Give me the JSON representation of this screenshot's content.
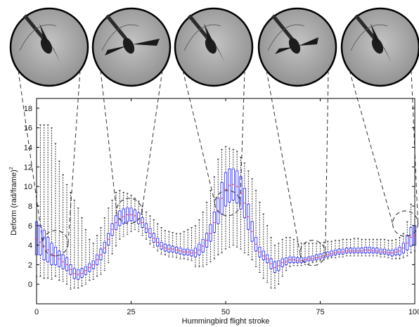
{
  "chart_data": {
    "type": "box",
    "title": "",
    "xlabel": "Hummingbird flight stroke",
    "ylabel": "Deform (rad/frame)",
    "ylabel_superscript": "2",
    "xlim": [
      0,
      100
    ],
    "ylim": [
      -2,
      19
    ],
    "xticks": [
      0,
      25,
      50,
      75,
      100
    ],
    "yticks": [
      0,
      2,
      4,
      6,
      8,
      10,
      12,
      14,
      16,
      18
    ],
    "grid": false,
    "box_color": "#3333ff",
    "median_color": "#ff3333",
    "whisker_color": "#222222",
    "boxes": {
      "x": [
        0,
        1,
        2,
        3,
        4,
        5,
        6,
        7,
        8,
        9,
        10,
        11,
        12,
        13,
        14,
        15,
        16,
        17,
        18,
        19,
        20,
        21,
        22,
        23,
        24,
        25,
        26,
        27,
        28,
        29,
        30,
        31,
        32,
        33,
        34,
        35,
        36,
        37,
        38,
        39,
        40,
        41,
        42,
        43,
        44,
        45,
        46,
        47,
        48,
        49,
        50,
        51,
        52,
        53,
        54,
        55,
        56,
        57,
        58,
        59,
        60,
        61,
        62,
        63,
        64,
        65,
        66,
        67,
        68,
        69,
        70,
        71,
        72,
        73,
        74,
        75,
        76,
        77,
        78,
        79,
        80,
        81,
        82,
        83,
        84,
        85,
        86,
        87,
        88,
        89,
        90,
        91,
        92,
        93,
        94,
        95,
        96,
        97,
        98,
        99,
        100
      ],
      "q1": [
        3.0,
        3.0,
        2.5,
        2.3,
        2.0,
        2.0,
        1.8,
        1.6,
        1.4,
        1.0,
        0.6,
        0.5,
        0.7,
        1.0,
        1.3,
        1.6,
        2.0,
        2.5,
        3.2,
        4.0,
        5.0,
        5.6,
        6.0,
        6.2,
        6.4,
        6.5,
        6.4,
        6.2,
        5.8,
        5.3,
        4.8,
        4.3,
        3.9,
        3.6,
        3.4,
        3.3,
        3.3,
        3.2,
        3.1,
        3.0,
        3.0,
        2.9,
        2.8,
        3.0,
        3.3,
        3.8,
        4.4,
        5.3,
        6.2,
        7.2,
        8.0,
        8.4,
        8.6,
        8.3,
        7.7,
        6.8,
        5.6,
        4.4,
        3.4,
        2.8,
        2.5,
        2.2,
        1.6,
        1.2,
        1.4,
        1.8,
        2.0,
        2.2,
        2.2,
        2.2,
        2.2,
        2.3,
        2.4,
        2.4,
        2.5,
        2.6,
        2.7,
        2.8,
        2.9,
        3.0,
        3.1,
        3.1,
        3.2,
        3.2,
        3.2,
        3.2,
        3.2,
        3.2,
        3.2,
        3.2,
        3.2,
        3.1,
        3.1,
        3.0,
        2.9,
        3.0,
        3.0,
        3.2,
        3.5,
        3.9,
        4.0
      ],
      "q3": [
        6.4,
        6.0,
        5.5,
        4.8,
        4.2,
        3.8,
        3.4,
        3.0,
        2.7,
        2.0,
        1.6,
        1.5,
        1.6,
        1.8,
        2.1,
        2.4,
        3.0,
        3.6,
        4.3,
        5.2,
        6.2,
        7.0,
        7.5,
        7.7,
        7.8,
        7.8,
        7.6,
        7.3,
        6.8,
        6.2,
        5.7,
        5.2,
        4.7,
        4.3,
        4.1,
        4.0,
        3.9,
        3.8,
        3.7,
        3.6,
        3.6,
        3.5,
        3.7,
        4.1,
        4.6,
        5.2,
        6.1,
        7.4,
        8.8,
        10.4,
        11.4,
        11.8,
        11.8,
        11.6,
        11.0,
        9.8,
        8.2,
        6.4,
        4.8,
        3.8,
        3.4,
        3.0,
        2.6,
        2.3,
        2.4,
        2.6,
        2.7,
        2.8,
        2.8,
        2.7,
        2.7,
        2.7,
        2.8,
        2.9,
        3.0,
        3.1,
        3.2,
        3.3,
        3.4,
        3.5,
        3.6,
        3.6,
        3.7,
        3.7,
        3.7,
        3.7,
        3.7,
        3.8,
        3.8,
        3.7,
        3.7,
        3.6,
        3.6,
        3.5,
        3.5,
        3.6,
        3.8,
        4.2,
        5.0,
        5.8,
        6.0
      ],
      "median": [
        4.6,
        4.3,
        3.9,
        3.5,
        3.1,
        2.9,
        2.6,
        2.3,
        2.0,
        1.5,
        1.1,
        1.0,
        1.1,
        1.4,
        1.7,
        2.0,
        2.5,
        3.0,
        3.7,
        4.6,
        5.6,
        6.3,
        6.7,
        6.9,
        7.1,
        7.1,
        7.0,
        6.7,
        6.3,
        5.7,
        5.2,
        4.7,
        4.3,
        3.9,
        3.7,
        3.6,
        3.6,
        3.5,
        3.4,
        3.3,
        3.3,
        3.2,
        3.2,
        3.5,
        3.9,
        4.5,
        5.2,
        6.3,
        7.5,
        8.8,
        9.7,
        10.1,
        10.2,
        10.0,
        9.3,
        8.3,
        6.9,
        5.4,
        4.1,
        3.3,
        2.9,
        2.6,
        2.1,
        1.7,
        1.9,
        2.2,
        2.3,
        2.5,
        2.5,
        2.4,
        2.4,
        2.5,
        2.6,
        2.6,
        2.7,
        2.8,
        2.9,
        3.0,
        3.1,
        3.2,
        3.3,
        3.3,
        3.4,
        3.4,
        3.4,
        3.4,
        3.4,
        3.5,
        3.5,
        3.4,
        3.4,
        3.3,
        3.3,
        3.2,
        3.2,
        3.3,
        3.4,
        3.7,
        4.2,
        4.8,
        5.0
      ],
      "low": [
        0.8,
        0.8,
        0.6,
        0.6,
        0.5,
        0.8,
        0.4,
        0.3,
        0.0,
        -0.5,
        -0.4,
        -0.4,
        -0.2,
        0.0,
        0.4,
        0.5,
        0.8,
        1.0,
        1.4,
        2.2,
        3.1,
        3.9,
        4.6,
        4.9,
        5.1,
        5.4,
        5.6,
        5.4,
        5.0,
        4.6,
        4.1,
        3.8,
        3.4,
        3.1,
        3.0,
        2.8,
        2.8,
        2.7,
        2.6,
        2.6,
        2.5,
        2.4,
        1.8,
        1.8,
        1.8,
        2.0,
        2.3,
        2.6,
        3.0,
        3.2,
        3.6,
        3.8,
        4.0,
        3.8,
        3.6,
        3.2,
        3.0,
        2.5,
        1.8,
        1.2,
        0.6,
        0.2,
        -0.4,
        -0.4,
        0.0,
        0.8,
        1.4,
        1.8,
        1.9,
        1.9,
        1.9,
        2.0,
        2.1,
        2.2,
        2.3,
        2.4,
        2.5,
        2.6,
        2.7,
        2.7,
        2.8,
        2.8,
        2.9,
        2.9,
        2.9,
        2.9,
        2.9,
        2.9,
        2.9,
        2.9,
        2.9,
        2.8,
        2.8,
        2.7,
        2.6,
        2.6,
        2.6,
        2.7,
        2.9,
        3.2,
        3.4
      ],
      "high": [
        9.4,
        16.3,
        16.3,
        16.3,
        16.0,
        14.4,
        12.6,
        11.2,
        10.2,
        9.4,
        8.6,
        7.8,
        6.8,
        5.6,
        4.6,
        4.2,
        5.0,
        5.8,
        6.8,
        7.8,
        8.6,
        9.4,
        9.6,
        9.4,
        9.3,
        9.1,
        8.8,
        8.5,
        8.0,
        7.4,
        7.0,
        6.6,
        6.2,
        5.8,
        5.5,
        5.4,
        5.3,
        5.2,
        5.2,
        5.4,
        5.6,
        5.8,
        6.0,
        6.6,
        7.4,
        8.4,
        9.6,
        11.0,
        12.8,
        13.8,
        14.1,
        13.9,
        13.8,
        13.6,
        13.0,
        12.4,
        11.6,
        10.8,
        9.6,
        8.4,
        7.2,
        6.0,
        4.8,
        4.0,
        4.2,
        4.6,
        4.8,
        4.8,
        4.6,
        4.4,
        4.2,
        4.2,
        4.2,
        4.2,
        4.2,
        4.2,
        4.3,
        4.4,
        4.4,
        4.5,
        4.5,
        4.6,
        4.6,
        4.6,
        4.7,
        4.7,
        4.6,
        4.6,
        4.6,
        4.6,
        4.6,
        4.6,
        4.6,
        4.5,
        4.5,
        4.6,
        4.8,
        5.2,
        6.4,
        8.2,
        9.0
      ]
    },
    "zoom_circles": [
      {
        "x": 5,
        "y": 4.2
      },
      {
        "x": 24.5,
        "y": 7.5
      },
      {
        "x": 50.5,
        "y": 8.3
      },
      {
        "x": 73,
        "y": 3.2
      },
      {
        "x": 97.5,
        "y": 6.2
      }
    ],
    "insets": [
      {
        "name": "inset-frame-1",
        "wing": "up"
      },
      {
        "name": "inset-frame-2",
        "wing": "spread"
      },
      {
        "name": "inset-frame-3",
        "wing": "up"
      },
      {
        "name": "inset-frame-4",
        "wing": "down"
      },
      {
        "name": "inset-frame-5",
        "wing": "up"
      }
    ]
  }
}
